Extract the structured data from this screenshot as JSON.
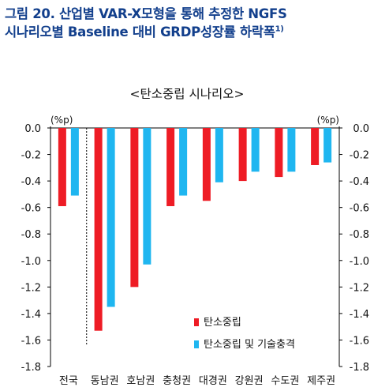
{
  "figure": {
    "title_line1": "그림 20. 산업별 VAR-X모형을 통해 추정한 NGFS",
    "title_line2": "시나리오별 Baseline 대비 GRDP성장률 하락폭",
    "title_footnote": "1)"
  },
  "chart_data": {
    "type": "bar",
    "title": "<탄소중립 시나리오>",
    "unit_left": "(%p)",
    "unit_right": "(%p)",
    "categories": [
      "전국",
      "동남권",
      "호남권",
      "충청권",
      "대경권",
      "강원권",
      "수도권",
      "제주권"
    ],
    "series": [
      {
        "name": "탄소중립",
        "color": "#ee1c25",
        "values": [
          -0.59,
          -1.53,
          -1.2,
          -0.59,
          -0.55,
          -0.4,
          -0.37,
          -0.28
        ]
      },
      {
        "name": "탄소중립 및 기술충격",
        "color": "#1fb6f0",
        "values": [
          -0.51,
          -1.35,
          -1.03,
          -0.51,
          -0.41,
          -0.33,
          -0.33,
          -0.26
        ]
      }
    ],
    "ylim": [
      -1.8,
      0.0
    ],
    "yticks": [
      "0.0",
      "-0.2",
      "-0.4",
      "-0.6",
      "-0.8",
      "-1.0",
      "-1.2",
      "-1.4",
      "-1.6",
      "-1.8"
    ],
    "grid": false,
    "legend_position": "bottom-right"
  }
}
